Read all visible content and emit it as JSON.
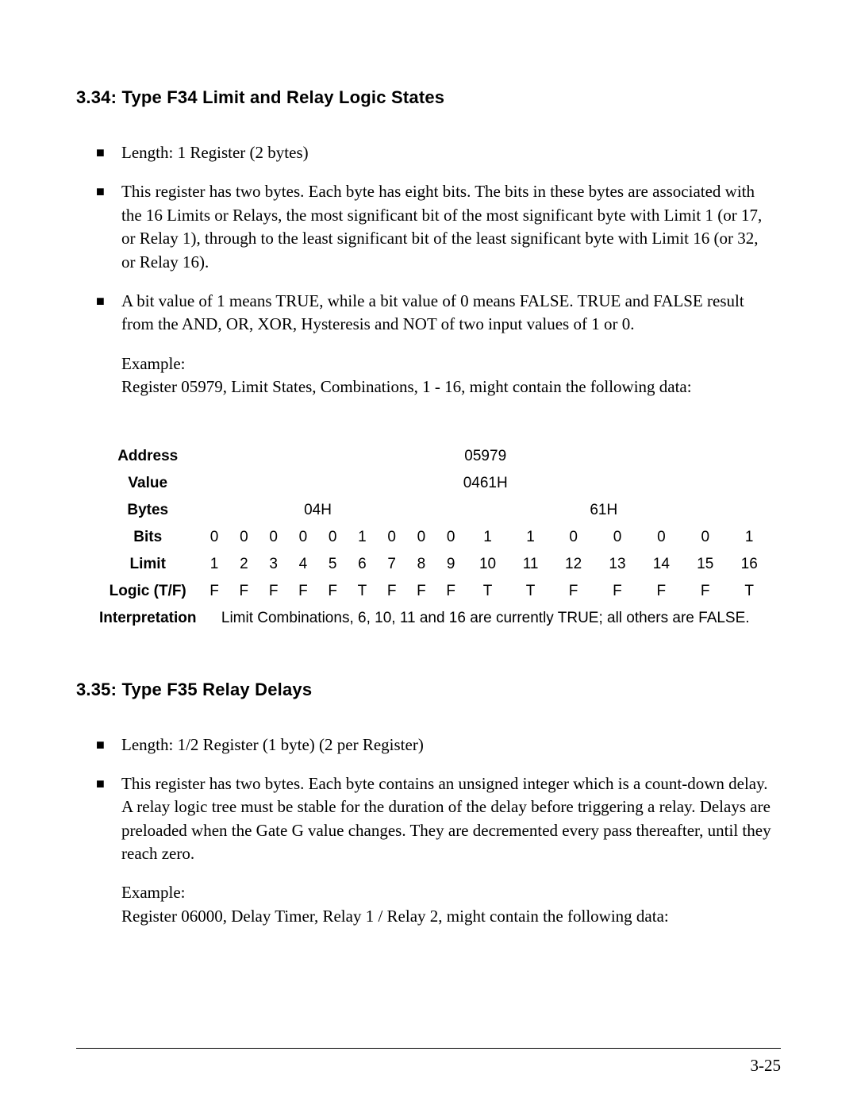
{
  "heading1": "3.34: Type F34  Limit and Relay Logic States",
  "sec1_b1": "Length: 1 Register (2 bytes)",
  "sec1_b2": "This register has two bytes.  Each byte has eight bits.  The bits in these bytes are associated with the 16 Limits or Relays, the most significant bit of the most significant byte with Limit 1 (or 17, or Relay 1), through to the least significant bit of the least significant byte with Limit 16 (or 32, or Relay 16).",
  "sec1_b3": "A bit value of 1 means TRUE, while a bit value of 0 means FALSE.  TRUE and FALSE result from the AND, OR, XOR, Hysteresis and NOT of two input values of 1 or 0.",
  "sec1_example_l1": "Example:",
  "sec1_example_l2": "Register 05979, Limit States, Combinations, 1 - 16, might contain the following data:",
  "table": {
    "rows": {
      "address": {
        "label": "Address",
        "valueSingle": "05979"
      },
      "value": {
        "label": "Value",
        "valueSingle": "0461H"
      },
      "bytes": {
        "label": "Bytes",
        "left": "04H",
        "right": "61H"
      },
      "bits": {
        "label": "Bits",
        "cells": [
          "0",
          "0",
          "0",
          "0",
          "0",
          "1",
          "0",
          "0",
          "0",
          "1",
          "1",
          "0",
          "0",
          "0",
          "0",
          "1"
        ]
      },
      "limit": {
        "label": "Limit",
        "cells": [
          "1",
          "2",
          "3",
          "4",
          "5",
          "6",
          "7",
          "8",
          "9",
          "10",
          "11",
          "12",
          "13",
          "14",
          "15",
          "16"
        ]
      },
      "logic": {
        "label": "Logic (T/F)",
        "cells": [
          "F",
          "F",
          "F",
          "F",
          "F",
          "T",
          "F",
          "F",
          "F",
          "T",
          "T",
          "F",
          "F",
          "F",
          "F",
          "T"
        ]
      },
      "interp": {
        "label": "Interpretation",
        "text": "Limit Combinations, 6, 10, 11 and 16 are currently TRUE; all others are FALSE."
      }
    }
  },
  "heading2": "3.35: Type F35  Relay Delays",
  "sec2_b1": "Length: 1/2 Register (1 byte) (2 per Register)",
  "sec2_b2": "This register has two bytes.  Each byte contains an unsigned integer which is a count-down delay.  A relay logic tree must be stable for the duration of the delay before triggering a relay.  Delays are preloaded when the Gate G value changes.  They are decremented every pass thereafter, until they reach zero.",
  "sec2_example_l1": "Example:",
  "sec2_example_l2": "Register 06000, Delay Timer, Relay 1 / Relay 2, might contain the following data:",
  "page_number": "3-25",
  "colors": {
    "text": "#000000",
    "background": "#ffffff"
  }
}
